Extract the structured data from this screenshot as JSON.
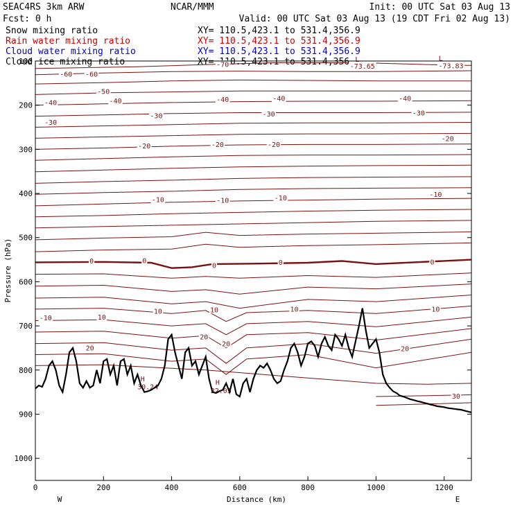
{
  "header": {
    "model": "SEAC4RS  3km ARW",
    "org": "NCAR/MMM",
    "init": "Init: 00 UTC Sat 03 Aug 13",
    "fcst": "Fcst:     0 h",
    "valid": "Valid: 00 UTC Sat 03 Aug 13 (19 CDT Fri 02 Aug 13)"
  },
  "fields": [
    {
      "label": "Snow mixing ratio",
      "xy": "XY= 110.5,423.1 to 531.4,356.9",
      "color": "#000000"
    },
    {
      "label": "Rain water mixing ratio",
      "xy": "XY= 110.5,423.1 to 531.4,356.9",
      "color": "#cc0000"
    },
    {
      "label": "Cloud water mixing ratio",
      "xy": "XY= 110.5,423.1 to 531.4,356.9",
      "color": "#0000cc"
    },
    {
      "label": "Cloud ice mixing ratio",
      "xy": "XY= 110.5,423.1 to 531.4,356.9",
      "color": "#000000"
    }
  ],
  "chart_data": {
    "type": "line",
    "xlabel": "Distance (km)",
    "ylabel": "Pressure (hPa)",
    "xlim": [
      0,
      1280
    ],
    "ylim": [
      1050,
      100
    ],
    "x_ticks": [
      0,
      200,
      400,
      600,
      800,
      1000,
      1200
    ],
    "y_ticks": [
      100,
      200,
      300,
      400,
      500,
      600,
      700,
      800,
      900,
      1000
    ],
    "x_end_labels": {
      "left": "W",
      "right": "E"
    },
    "contour_color": "#7a1010",
    "terrain_color": "#000000",
    "contours": [
      {
        "x": [
          0,
          300,
          500,
          700,
          960,
          1050,
          1150,
          1280
        ],
        "p": [
          117,
          113,
          108,
          104,
          104,
          106,
          108,
          110
        ]
      },
      {
        "x": [
          0,
          200,
          400,
          600,
          800,
          1000,
          1280
        ],
        "p": [
          131,
          127,
          124,
          123,
          124,
          124,
          122
        ]
      },
      {
        "x": [
          0,
          200,
          400,
          600,
          800,
          1000,
          1280
        ],
        "p": [
          152,
          149,
          145,
          143,
          144,
          145,
          145
        ]
      },
      {
        "x": [
          0,
          200,
          400,
          600,
          800,
          1000,
          1280
        ],
        "p": [
          176,
          172,
          170,
          168,
          168,
          168,
          168
        ]
      },
      {
        "x": [
          0,
          200,
          400,
          600,
          800,
          1000,
          1280
        ],
        "p": [
          200,
          197,
          194,
          192,
          191,
          191,
          190
        ]
      },
      {
        "x": [
          0,
          200,
          400,
          600,
          800,
          1000,
          1280
        ],
        "p": [
          225,
          222,
          219,
          217,
          217,
          217,
          216
        ]
      },
      {
        "x": [
          0,
          200,
          400,
          600,
          800,
          1000,
          1280
        ],
        "p": [
          250,
          247,
          244,
          241,
          240,
          240,
          239
        ]
      },
      {
        "x": [
          0,
          200,
          400,
          600,
          800,
          1000,
          1280
        ],
        "p": [
          275,
          272,
          269,
          266,
          265,
          265,
          264
        ]
      },
      {
        "x": [
          0,
          200,
          400,
          600,
          800,
          1000,
          1280
        ],
        "p": [
          300,
          297,
          293,
          290,
          289,
          289,
          288
        ]
      },
      {
        "x": [
          0,
          200,
          400,
          600,
          800,
          1000,
          1280
        ],
        "p": [
          325,
          321,
          317,
          314,
          313,
          313,
          312
        ]
      },
      {
        "x": [
          0,
          200,
          400,
          600,
          800,
          1000,
          1280
        ],
        "p": [
          351,
          347,
          343,
          340,
          338,
          337,
          336
        ]
      },
      {
        "x": [
          0,
          200,
          400,
          600,
          800,
          1000,
          1280
        ],
        "p": [
          377,
          373,
          370,
          366,
          364,
          363,
          362
        ]
      },
      {
        "x": [
          0,
          200,
          400,
          600,
          800,
          1000,
          1280
        ],
        "p": [
          402,
          398,
          395,
          391,
          389,
          388,
          387
        ]
      },
      {
        "x": [
          0,
          200,
          400,
          600,
          800,
          1000,
          1280
        ],
        "p": [
          428,
          424,
          420,
          417,
          415,
          413,
          411
        ]
      },
      {
        "x": [
          0,
          200,
          400,
          600,
          800,
          1000,
          1280
        ],
        "p": [
          453,
          450,
          446,
          443,
          440,
          438,
          436
        ]
      },
      {
        "x": [
          0,
          200,
          400,
          600,
          800,
          1000,
          1280
        ],
        "p": [
          478,
          475,
          472,
          469,
          466,
          463,
          461
        ]
      },
      {
        "x": [
          0,
          200,
          400,
          500,
          600,
          800,
          1000,
          1280
        ],
        "p": [
          505,
          501,
          498,
          488,
          495,
          492,
          490,
          487
        ]
      },
      {
        "x": [
          0,
          200,
          400,
          500,
          600,
          800,
          1000,
          1280
        ],
        "p": [
          532,
          528,
          526,
          515,
          522,
          518,
          516,
          512
        ]
      },
      {
        "x": [
          0,
          200,
          340,
          400,
          460,
          520,
          640,
          800,
          900,
          1000,
          1280
        ],
        "p": [
          556,
          555,
          557,
          569,
          567,
          560,
          559,
          557,
          553,
          560,
          550
        ],
        "bold": true
      },
      {
        "x": [
          0,
          200,
          400,
          500,
          600,
          800,
          1000,
          1280
        ],
        "p": [
          583,
          582,
          592,
          588,
          592,
          586,
          590,
          580
        ]
      },
      {
        "x": [
          0,
          200,
          400,
          500,
          600,
          800,
          1000,
          1280
        ],
        "p": [
          610,
          608,
          622,
          618,
          628,
          612,
          616,
          605
        ]
      },
      {
        "x": [
          0,
          200,
          400,
          500,
          600,
          800,
          1000,
          1280
        ],
        "p": [
          637,
          635,
          650,
          645,
          660,
          640,
          645,
          630
        ]
      },
      {
        "x": [
          0,
          200,
          400,
          500,
          560,
          620,
          800,
          1000,
          1280
        ],
        "p": [
          662,
          660,
          672,
          665,
          690,
          670,
          665,
          672,
          655
        ]
      },
      {
        "x": [
          0,
          200,
          400,
          500,
          560,
          620,
          800,
          1000,
          1280
        ],
        "p": [
          688,
          686,
          700,
          695,
          720,
          695,
          690,
          702,
          680
        ]
      },
      {
        "x": [
          0,
          200,
          400,
          500,
          560,
          620,
          800,
          1000,
          1280
        ],
        "p": [
          714,
          712,
          728,
          722,
          750,
          720,
          715,
          732,
          706
        ]
      },
      {
        "x": [
          0,
          200,
          400,
          500,
          560,
          620,
          800,
          1000,
          1280
        ],
        "p": [
          740,
          738,
          755,
          750,
          785,
          750,
          740,
          762,
          730
        ]
      },
      {
        "x": [
          0,
          200,
          400,
          500,
          560,
          620,
          800,
          1000,
          1280
        ],
        "p": [
          765,
          763,
          780,
          775,
          810,
          775,
          765,
          795,
          760
        ]
      },
      {
        "x": [
          0,
          200,
          500,
          1000,
          1150,
          1280
        ],
        "p": [
          790,
          788,
          800,
          830,
          832,
          830
        ]
      },
      {
        "x": [
          1000,
          1150,
          1280
        ],
        "p": [
          860,
          858,
          856
        ]
      },
      {
        "x": [
          1000,
          1150,
          1280
        ],
        "p": [
          880,
          877,
          874
        ]
      }
    ],
    "contour_labels": [
      {
        "text": "-70",
        "x": 550,
        "p": 108
      },
      {
        "text": "-73.65",
        "x": 960,
        "p": 112
      },
      {
        "text": "-73.83",
        "x": 1220,
        "p": 111
      },
      {
        "text": "L",
        "x": 945,
        "p": 96
      },
      {
        "text": "L",
        "x": 1190,
        "p": 94
      },
      {
        "text": "-60",
        "x": 90,
        "p": 130
      },
      {
        "text": "-60",
        "x": 165,
        "p": 130
      },
      {
        "text": "-50",
        "x": 200,
        "p": 169
      },
      {
        "text": "-40",
        "x": 45,
        "p": 194
      },
      {
        "text": "-40",
        "x": 235,
        "p": 190
      },
      {
        "text": "-40",
        "x": 550,
        "p": 187
      },
      {
        "text": "-40",
        "x": 715,
        "p": 185
      },
      {
        "text": "-40",
        "x": 1085,
        "p": 185
      },
      {
        "text": "-30",
        "x": 45,
        "p": 239
      },
      {
        "text": "-30",
        "x": 355,
        "p": 224
      },
      {
        "text": "-30",
        "x": 685,
        "p": 220
      },
      {
        "text": "-30",
        "x": 1125,
        "p": 218
      },
      {
        "text": "-20",
        "x": 320,
        "p": 292
      },
      {
        "text": "-20",
        "x": 535,
        "p": 289
      },
      {
        "text": "-20",
        "x": 700,
        "p": 289
      },
      {
        "text": "-20",
        "x": 1210,
        "p": 276
      },
      {
        "text": "-10",
        "x": 360,
        "p": 414
      },
      {
        "text": "-10",
        "x": 550,
        "p": 416
      },
      {
        "text": "-10",
        "x": 720,
        "p": 410
      },
      {
        "text": "-10",
        "x": 1175,
        "p": 402
      },
      {
        "text": "0",
        "x": 165,
        "p": 553
      },
      {
        "text": "0",
        "x": 320,
        "p": 552
      },
      {
        "text": "0",
        "x": 525,
        "p": 563
      },
      {
        "text": "0",
        "x": 720,
        "p": 556
      },
      {
        "text": "0",
        "x": 1165,
        "p": 555
      },
      {
        "text": "-10",
        "x": 30,
        "p": 682
      },
      {
        "text": "10",
        "x": 195,
        "p": 680
      },
      {
        "text": "10",
        "x": 360,
        "p": 667
      },
      {
        "text": "10",
        "x": 525,
        "p": 664
      },
      {
        "text": "10",
        "x": 760,
        "p": 662
      },
      {
        "text": "10",
        "x": 1175,
        "p": 662
      },
      {
        "text": "20",
        "x": 160,
        "p": 750
      },
      {
        "text": "20",
        "x": 495,
        "p": 725
      },
      {
        "text": "20",
        "x": 560,
        "p": 741
      },
      {
        "text": "20",
        "x": 1085,
        "p": 752
      },
      {
        "text": "30",
        "x": 1235,
        "p": 859
      },
      {
        "text": "H",
        "x": 315,
        "p": 820
      },
      {
        "text": "30.24",
        "x": 330,
        "p": 838
      },
      {
        "text": "H",
        "x": 535,
        "p": 828
      },
      {
        "text": "32.03",
        "x": 545,
        "p": 847
      }
    ],
    "terrain": {
      "x": [
        0,
        10,
        20,
        30,
        40,
        50,
        60,
        70,
        80,
        90,
        100,
        110,
        120,
        130,
        140,
        150,
        160,
        170,
        180,
        190,
        200,
        210,
        220,
        230,
        240,
        250,
        260,
        270,
        280,
        290,
        300,
        310,
        320,
        330,
        340,
        350,
        360,
        370,
        380,
        390,
        400,
        410,
        420,
        430,
        440,
        450,
        460,
        470,
        480,
        490,
        500,
        510,
        520,
        530,
        540,
        550,
        560,
        570,
        580,
        590,
        600,
        610,
        620,
        630,
        640,
        650,
        660,
        670,
        680,
        690,
        700,
        710,
        720,
        730,
        740,
        750,
        760,
        770,
        780,
        790,
        800,
        810,
        820,
        830,
        840,
        850,
        860,
        870,
        880,
        890,
        900,
        910,
        920,
        930,
        940,
        950,
        960,
        970,
        980,
        990,
        1000,
        1010,
        1020,
        1030,
        1040,
        1050,
        1060,
        1070,
        1080,
        1090,
        1100,
        1110,
        1120,
        1130,
        1140,
        1150,
        1160,
        1170,
        1180,
        1190,
        1200,
        1210,
        1220,
        1230,
        1240,
        1250,
        1260,
        1270,
        1280
      ],
      "p": [
        842,
        835,
        838,
        820,
        790,
        780,
        800,
        835,
        850,
        810,
        760,
        750,
        780,
        830,
        840,
        825,
        840,
        835,
        800,
        830,
        780,
        775,
        810,
        790,
        835,
        780,
        775,
        810,
        790,
        830,
        810,
        835,
        850,
        848,
        845,
        840,
        835,
        820,
        790,
        730,
        720,
        760,
        790,
        820,
        760,
        750,
        790,
        780,
        810,
        790,
        770,
        820,
        850,
        852,
        848,
        845,
        830,
        850,
        820,
        855,
        860,
        830,
        820,
        850,
        820,
        800,
        790,
        795,
        785,
        800,
        820,
        830,
        825,
        800,
        780,
        750,
        740,
        760,
        790,
        770,
        740,
        735,
        745,
        770,
        740,
        725,
        745,
        755,
        720,
        730,
        745,
        720,
        750,
        770,
        735,
        700,
        660,
        710,
        750,
        740,
        730,
        760,
        810,
        830,
        840,
        848,
        852,
        858,
        860,
        863,
        866,
        868,
        870,
        872,
        874,
        876,
        878,
        880,
        882,
        883,
        884,
        886,
        887,
        888,
        889,
        890,
        892,
        894,
        896
      ]
    }
  }
}
